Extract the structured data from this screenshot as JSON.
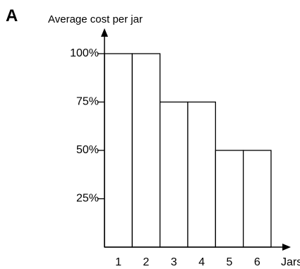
{
  "panel_label": "A",
  "chart_data": {
    "type": "bar",
    "title": "",
    "ylabel": "Average cost per jar",
    "xlabel": "Jars",
    "categories": [
      "1",
      "2",
      "3",
      "4",
      "5",
      "6"
    ],
    "values": [
      100,
      100,
      75,
      75,
      50,
      50
    ],
    "ylim": [
      0,
      100
    ],
    "yticks": [
      {
        "value": 25,
        "label": "25%"
      },
      {
        "value": 50,
        "label": "50%"
      },
      {
        "value": 75,
        "label": "75%"
      },
      {
        "value": 100,
        "label": "100%"
      }
    ],
    "grid": false,
    "legend": "none",
    "bar_fill": "#ffffff",
    "bar_stroke": "#000000"
  }
}
